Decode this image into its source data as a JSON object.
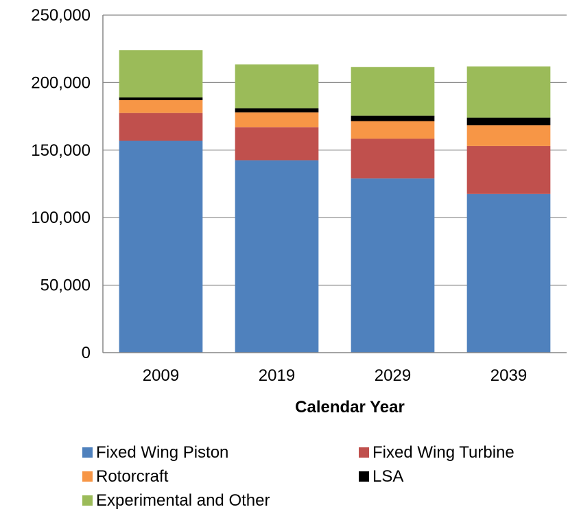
{
  "chart_data": {
    "type": "bar",
    "stacked": true,
    "title": "",
    "xlabel": "Calendar Year",
    "ylabel": "",
    "categories": [
      "2009",
      "2019",
      "2029",
      "2039"
    ],
    "ylim": [
      0,
      250000
    ],
    "yticks": [
      "0",
      "50,000",
      "100,000",
      "150,000",
      "200,000",
      "250,000"
    ],
    "ytick_values": [
      0,
      50000,
      100000,
      150000,
      200000,
      250000
    ],
    "grid": true,
    "legend_position": "bottom",
    "series": [
      {
        "name": "Fixed Wing Piston",
        "color": "#4F81BD",
        "values": [
          157000,
          142500,
          129000,
          117500
        ]
      },
      {
        "name": "Fixed Wing Turbine",
        "color": "#C0504D",
        "values": [
          20500,
          24500,
          29500,
          35500
        ]
      },
      {
        "name": "Rotorcraft",
        "color": "#F79646",
        "values": [
          9500,
          11000,
          13000,
          15500
        ]
      },
      {
        "name": "LSA",
        "color": "#000000",
        "values": [
          2000,
          3000,
          4000,
          5500
        ]
      },
      {
        "name": "Experimental and Other",
        "color": "#9BBB59",
        "values": [
          35000,
          32500,
          36000,
          38000
        ]
      }
    ]
  }
}
